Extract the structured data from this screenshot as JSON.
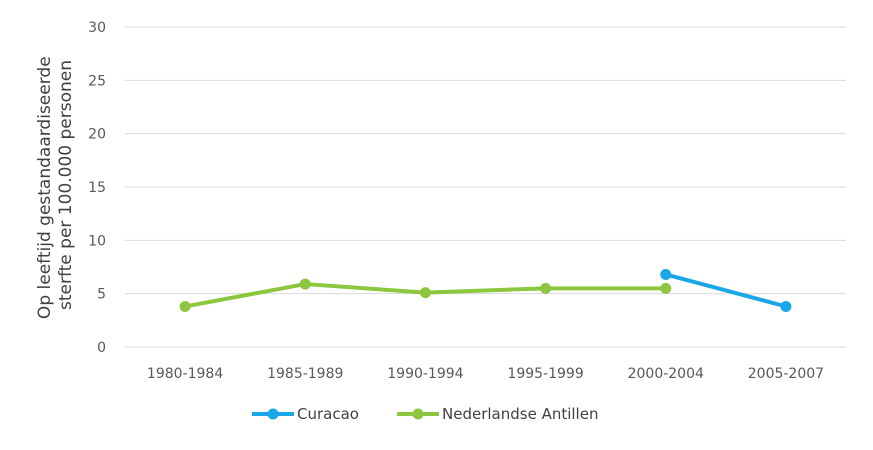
{
  "chart_data": {
    "type": "line",
    "categories": [
      "1980-1984",
      "1985-1989",
      "1990-1994",
      "1995-1999",
      "2000-2004",
      "2005-2007"
    ],
    "ylabel_lines": [
      "Op leeftijd gestandaardiseerde",
      "sterfte per 100.000 personen"
    ],
    "xlabel": "",
    "ylim": [
      0,
      30
    ],
    "yticks": [
      0,
      5,
      10,
      15,
      20,
      25,
      30
    ],
    "grid": true,
    "legend_position": "bottom",
    "series": [
      {
        "name": "Curacao",
        "color": "#1aa7e8",
        "values": [
          null,
          null,
          null,
          null,
          6.8,
          3.8
        ]
      },
      {
        "name": "Nederlandse Antillen",
        "color": "#8dc63f",
        "values": [
          3.8,
          5.9,
          5.1,
          5.5,
          5.5,
          null
        ]
      }
    ]
  }
}
